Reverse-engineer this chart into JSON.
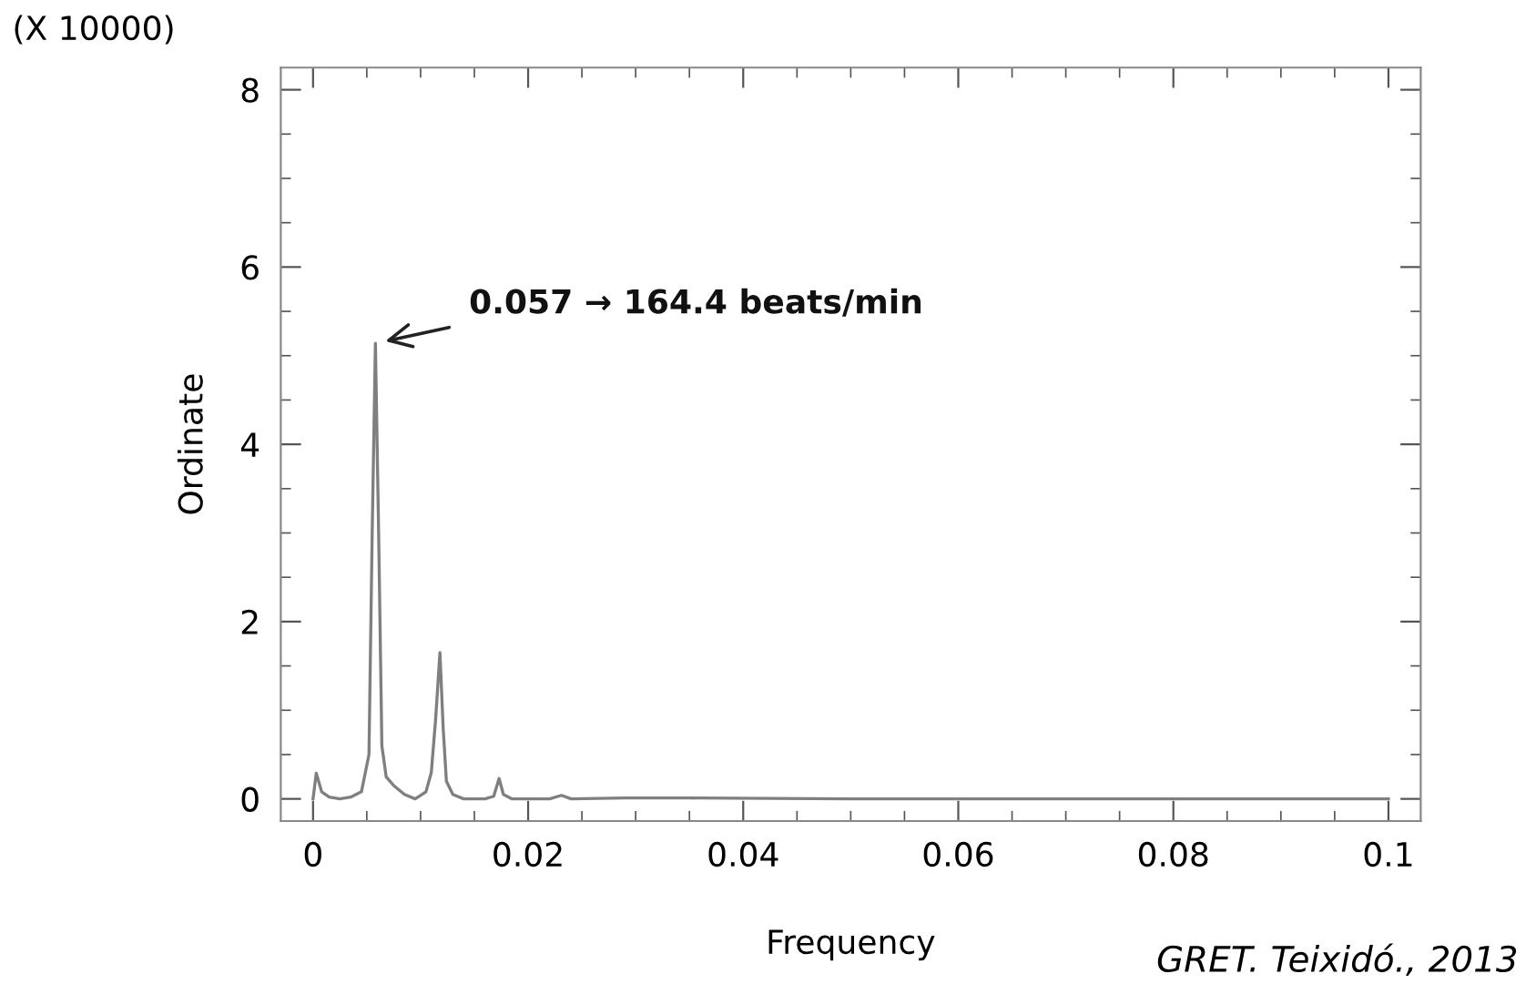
{
  "chart_data": {
    "type": "line",
    "xlabel": "Frequency",
    "ylabel": "Ordinate",
    "x": [
      0,
      0.0003,
      0.0008,
      0.0015,
      0.0025,
      0.0035,
      0.0045,
      0.0052,
      0.0055,
      0.0058,
      0.0061,
      0.0064,
      0.0068,
      0.0075,
      0.0085,
      0.0095,
      0.0105,
      0.011,
      0.0114,
      0.0118,
      0.0121,
      0.0124,
      0.013,
      0.014,
      0.016,
      0.0168,
      0.0173,
      0.0177,
      0.0185,
      0.022,
      0.0231,
      0.024,
      0.029,
      0.035,
      0.05,
      0.1
    ],
    "series": [
      {
        "color": "#7f7f7f",
        "values": [
          0.0,
          0.29,
          0.08,
          0.02,
          0.0,
          0.02,
          0.08,
          0.5,
          3.0,
          5.14,
          3.0,
          0.6,
          0.25,
          0.15,
          0.05,
          0.0,
          0.08,
          0.3,
          0.9,
          1.65,
          0.8,
          0.2,
          0.05,
          0.0,
          0.0,
          0.03,
          0.23,
          0.05,
          0.0,
          0.0,
          0.04,
          0.0,
          0.01,
          0.01,
          0.0,
          0.0
        ]
      }
    ],
    "xlim": [
      -0.003,
      0.103
    ],
    "ylim": [
      -0.25,
      8.25
    ],
    "xticks": [
      0,
      0.02,
      0.04,
      0.06,
      0.08,
      0.1
    ],
    "yticks": [
      0,
      2,
      4,
      6,
      8
    ],
    "grid": false,
    "legend": false,
    "marker": "none",
    "line_style": "solid",
    "annotations": [
      {
        "text": "0.057 → 164.4 beats/min",
        "x": 0.0058,
        "y": 5.14
      },
      "(X 10000)",
      "GRET. Teixidó., 2013"
    ]
  }
}
